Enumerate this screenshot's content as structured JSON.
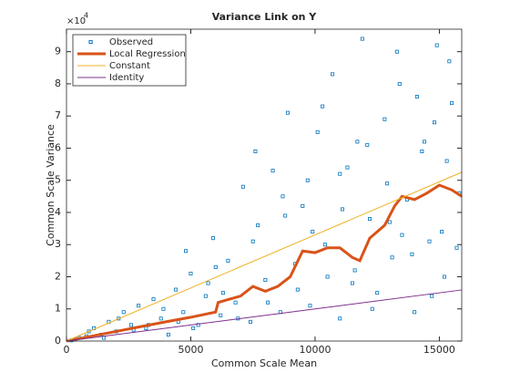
{
  "chart_data": {
    "type": "scatter-line",
    "title": "Variance Link on Y",
    "x_label": "Common Scale Mean",
    "y_label": "Common Scale Variance",
    "y_multiplier": "×10",
    "y_multiplier_exponent": "4",
    "xlim": [
      0,
      15900
    ],
    "xticks": [
      0,
      5000,
      10000,
      15000
    ],
    "ylim": [
      0,
      9.7
    ],
    "yticks": [
      0,
      1,
      2,
      3,
      4,
      5,
      6,
      7,
      8,
      9
    ],
    "legend": "top-left",
    "series": [
      {
        "name": "Observed",
        "kind": "marker",
        "color": "#0072bd",
        "x": [
          200,
          500,
          800,
          1100,
          1400,
          1700,
          2000,
          2300,
          2600,
          2900,
          3200,
          3500,
          3800,
          4100,
          4400,
          4700,
          5000,
          5300,
          5600,
          5900,
          6200,
          6500,
          6800,
          7100,
          7400,
          7700,
          8000,
          8300,
          8600,
          8900,
          9200,
          9500,
          9800,
          10100,
          10400,
          10700,
          11000,
          11300,
          11600,
          11900,
          12200,
          12500,
          12800,
          13100,
          13400,
          13700,
          14000,
          14300,
          14600,
          14900,
          15200,
          15500,
          15800,
          350,
          900,
          1500,
          2100,
          2700,
          3300,
          3900,
          4500,
          5100,
          5700,
          6300,
          6900,
          7500,
          8100,
          8700,
          9300,
          9900,
          10500,
          11100,
          11700,
          12300,
          12900,
          13500,
          14100,
          14700,
          15300,
          15700,
          7600,
          9700,
          10300,
          11500,
          12100,
          13300,
          13900,
          14800,
          15400,
          4800,
          6000,
          8800,
          11000,
          13000,
          14400,
          15100
        ],
        "values": [
          0.02,
          0.1,
          0.15,
          0.4,
          0.2,
          0.6,
          0.3,
          0.9,
          0.5,
          1.1,
          0.4,
          1.3,
          0.7,
          0.2,
          1.6,
          0.9,
          2.1,
          0.5,
          1.4,
          3.2,
          0.8,
          2.5,
          1.2,
          4.8,
          0.6,
          3.6,
          1.9,
          5.3,
          0.9,
          7.1,
          2.4,
          4.2,
          1.1,
          6.5,
          3.0,
          8.3,
          0.7,
          5.4,
          2.2,
          9.4,
          3.8,
          1.5,
          6.9,
          2.6,
          8.0,
          4.4,
          0.9,
          5.9,
          3.1,
          9.2,
          2.0,
          7.4,
          4.6,
          0.05,
          0.3,
          0.1,
          0.7,
          0.35,
          0.5,
          1.0,
          0.6,
          0.4,
          1.8,
          1.5,
          0.7,
          3.1,
          1.2,
          4.5,
          1.6,
          3.4,
          2.0,
          4.1,
          6.2,
          1.0,
          4.9,
          3.3,
          7.6,
          1.4,
          5.6,
          2.9,
          5.9,
          5.0,
          7.3,
          1.8,
          6.1,
          9.0,
          2.7,
          6.8,
          8.7,
          2.8,
          2.3,
          3.9,
          5.2,
          3.7,
          6.2,
          3.4
        ]
      },
      {
        "name": "Local Regression",
        "kind": "line",
        "color": "#d95319",
        "width": 3,
        "x": [
          0,
          1000,
          2000,
          3000,
          4000,
          5000,
          6000,
          6100,
          7000,
          7500,
          8000,
          8500,
          9000,
          9500,
          10000,
          10500,
          11000,
          11500,
          11800,
          12200,
          12800,
          13200,
          13500,
          14000,
          14500,
          15000,
          15500,
          15900
        ],
        "values": [
          0,
          0.15,
          0.3,
          0.45,
          0.6,
          0.74,
          0.9,
          1.2,
          1.4,
          1.7,
          1.55,
          1.7,
          2.0,
          2.8,
          2.75,
          2.9,
          2.9,
          2.6,
          2.5,
          3.2,
          3.6,
          4.2,
          4.5,
          4.4,
          4.6,
          4.85,
          4.7,
          4.5
        ]
      },
      {
        "name": "Constant",
        "kind": "line",
        "color": "#edb120",
        "width": 1,
        "x": [
          0,
          15900
        ],
        "values": [
          0,
          5.25
        ]
      },
      {
        "name": "Identity",
        "kind": "line",
        "color": "#7e2f8e",
        "width": 1,
        "x": [
          0,
          15900
        ],
        "values": [
          0,
          1.59
        ]
      }
    ]
  }
}
